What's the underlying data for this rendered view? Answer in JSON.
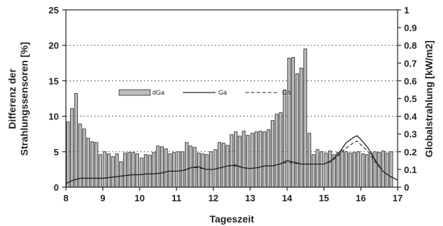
{
  "chart_data": {
    "type": "bar",
    "title": "",
    "xlabel": "Tageszeit",
    "ylabel_left": [
      "Differenz der",
      "Strahlungssensoren [%]"
    ],
    "ylabel_right": "Globalstrahlung [kW/m2]",
    "xlim": [
      8,
      17
    ],
    "ylim_left": [
      0,
      25
    ],
    "ylim_right": [
      0,
      1
    ],
    "x_ticks": [
      "8",
      "9",
      "10",
      "11",
      "12",
      "13",
      "14",
      "15",
      "16",
      "17"
    ],
    "y_ticks_left": [
      "0",
      "5",
      "10",
      "15",
      "20",
      "25"
    ],
    "y_ticks_right": [
      "0",
      "0.1",
      "0.2",
      "0.3",
      "0.4",
      "0.5",
      "0.6",
      "0.7",
      "0.8",
      "0.9",
      "1"
    ],
    "grid": "horizontal dashed at left-axis 5, 10, 15, 20",
    "legend_position": "upper-left",
    "legend": [
      {
        "name": "dGa",
        "style": "bar"
      },
      {
        "name": "Ga",
        "style": "solid line"
      },
      {
        "name": "Gh",
        "style": "dashed line"
      }
    ],
    "series": [
      {
        "name": "dGa",
        "type": "bar",
        "axis": "left",
        "x": [
          8.0,
          8.11,
          8.22,
          8.33,
          8.44,
          8.55,
          8.66,
          8.77,
          8.88,
          9.0,
          9.11,
          9.22,
          9.33,
          9.44,
          9.55,
          9.66,
          9.77,
          9.88,
          10.0,
          10.11,
          10.22,
          10.33,
          10.44,
          10.55,
          10.66,
          10.77,
          10.88,
          11.0,
          11.11,
          11.22,
          11.33,
          11.44,
          11.55,
          11.66,
          11.77,
          11.88,
          12.0,
          12.11,
          12.22,
          12.33,
          12.44,
          12.55,
          12.66,
          12.77,
          12.88,
          13.0,
          13.11,
          13.22,
          13.33,
          13.44,
          13.55,
          13.66,
          13.77,
          13.88,
          14.0,
          14.11,
          14.22,
          14.33,
          14.44,
          14.55,
          14.66,
          14.77,
          14.88,
          15.0,
          15.11,
          15.22,
          15.33,
          15.44,
          15.55,
          15.66,
          15.77,
          15.88,
          16.0,
          16.11,
          16.22,
          16.33,
          16.44,
          16.55,
          16.66,
          16.77
        ],
        "values": [
          9.2,
          11.1,
          13.2,
          8.9,
          8.2,
          6.9,
          6.4,
          6.3,
          4.6,
          5.0,
          4.7,
          4.3,
          4.7,
          3.6,
          4.8,
          4.9,
          4.9,
          4.7,
          4.1,
          4.6,
          4.5,
          4.9,
          5.8,
          5.7,
          5.4,
          4.7,
          4.9,
          5.0,
          5.0,
          6.3,
          5.8,
          5.6,
          4.8,
          4.7,
          4.6,
          5.0,
          5.3,
          6.3,
          6.2,
          5.9,
          7.4,
          7.8,
          7.2,
          7.9,
          7.3,
          7.6,
          7.8,
          7.9,
          7.8,
          8.1,
          9.4,
          10.3,
          10.5,
          13.7,
          18.2,
          18.3,
          16.0,
          16.8,
          19.5,
          7.6,
          4.6,
          5.3,
          5.0,
          4.8,
          5.1,
          4.6,
          4.9,
          5.2,
          5.0,
          4.8,
          4.9,
          5.0,
          4.7,
          4.6,
          4.8,
          5.0,
          4.9,
          5.1,
          4.8,
          5.0
        ]
      },
      {
        "name": "Ga",
        "type": "line",
        "style": "solid",
        "axis": "right",
        "x": [
          8.0,
          8.2,
          8.4,
          8.6,
          8.8,
          9.0,
          9.2,
          9.4,
          9.6,
          9.8,
          10.0,
          10.2,
          10.4,
          10.6,
          10.8,
          11.0,
          11.2,
          11.4,
          11.6,
          11.8,
          12.0,
          12.2,
          12.4,
          12.6,
          12.8,
          13.0,
          13.2,
          13.4,
          13.6,
          13.8,
          14.0,
          14.2,
          14.4,
          14.6,
          14.8,
          15.0,
          15.2,
          15.4,
          15.6,
          15.8,
          15.9,
          16.0,
          16.2,
          16.4,
          16.6,
          16.8,
          17.0
        ],
        "values": [
          0.02,
          0.04,
          0.05,
          0.05,
          0.05,
          0.05,
          0.055,
          0.06,
          0.065,
          0.07,
          0.07,
          0.075,
          0.075,
          0.08,
          0.09,
          0.09,
          0.095,
          0.11,
          0.115,
          0.1,
          0.1,
          0.11,
          0.12,
          0.125,
          0.11,
          0.105,
          0.11,
          0.12,
          0.12,
          0.13,
          0.15,
          0.14,
          0.13,
          0.13,
          0.13,
          0.13,
          0.15,
          0.19,
          0.25,
          0.28,
          0.29,
          0.27,
          0.22,
          0.15,
          0.09,
          0.06,
          0.04
        ]
      },
      {
        "name": "Gh",
        "type": "line",
        "style": "dashed",
        "axis": "right",
        "x": [
          8.0,
          8.2,
          8.4,
          8.6,
          8.8,
          9.0,
          9.2,
          9.4,
          9.6,
          9.8,
          10.0,
          10.2,
          10.4,
          10.6,
          10.8,
          11.0,
          11.2,
          11.4,
          11.6,
          11.8,
          12.0,
          12.2,
          12.4,
          12.6,
          12.8,
          13.0,
          13.2,
          13.4,
          13.6,
          13.8,
          14.0,
          14.2,
          14.4,
          14.6,
          14.8,
          15.0,
          15.2,
          15.4,
          15.6,
          15.8,
          15.9,
          16.0,
          16.2,
          16.4,
          16.6,
          16.8,
          17.0
        ],
        "values": [
          0.02,
          0.04,
          0.05,
          0.05,
          0.05,
          0.05,
          0.055,
          0.06,
          0.065,
          0.07,
          0.07,
          0.075,
          0.075,
          0.08,
          0.09,
          0.09,
          0.095,
          0.11,
          0.11,
          0.1,
          0.1,
          0.11,
          0.12,
          0.12,
          0.11,
          0.105,
          0.11,
          0.12,
          0.12,
          0.13,
          0.14,
          0.135,
          0.13,
          0.13,
          0.13,
          0.13,
          0.145,
          0.18,
          0.22,
          0.25,
          0.26,
          0.24,
          0.2,
          0.14,
          0.09,
          0.06,
          0.04
        ]
      }
    ]
  }
}
